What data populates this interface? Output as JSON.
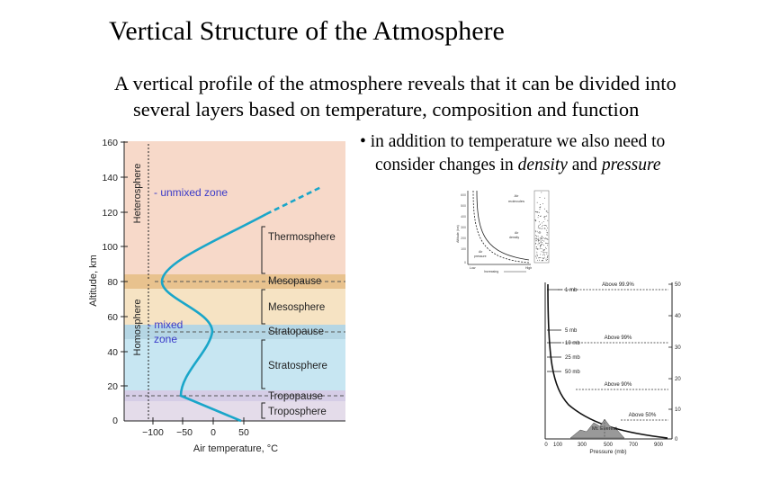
{
  "slide": {
    "title": "Vertical Structure of the Atmosphere",
    "intro_line1": "A vertical profile of the atmosphere reveals that it can be divided into",
    "intro_line2": "several layers based on temperature, composition and function",
    "bullet_marker": "•",
    "bullet_line1": "in addition to temperature we also need to",
    "bullet_line2_a": "consider changes in ",
    "bullet_line2_density": "density",
    "bullet_line2_b": " and ",
    "bullet_line2_pressure": "pressure"
  },
  "profile_diagram": {
    "ylabel": "Altitude, km",
    "xlabel": "Air temperature, °C",
    "y_ticks": [
      "160",
      "140",
      "120",
      "100",
      "80",
      "60",
      "40",
      "20",
      "0"
    ],
    "x_ticks": [
      "−100",
      "−50",
      "0",
      "50"
    ],
    "heterosphere": "Heterosphere",
    "homosphere": "Homosphere",
    "unmixed_zone": "- unmixed zone",
    "mixed_zone_line1": "- mixed",
    "mixed_zone_line2": "zone",
    "layers": {
      "thermosphere": "Thermosphere",
      "mesopause": "Mesopause",
      "mesosphere": "Mesosphere",
      "stratopause": "Stratopause",
      "stratosphere": "Stratosphere",
      "tropopause": "Tropopause",
      "troposphere": "Troposphere"
    },
    "colors": {
      "thermosphere": "#f7d9c9",
      "mesopause": "#e8c28e",
      "mesosphere": "#f6e3c3",
      "stratopause": "#b5d6e4",
      "stratosphere": "#c7e6f2",
      "tropopause": "#d5cde6",
      "troposphere": "#e4dcea",
      "curve": "#1aa6c9",
      "zone_text": "#3a3ac8"
    }
  },
  "density_thumb": {
    "air_molecules_line1": "Air",
    "air_molecules_line2": "molecules",
    "air_density_line1": "Air",
    "air_density_line2": "density",
    "air_pressure_line1": "Air",
    "air_pressure_line2": "pressure",
    "low": "Low",
    "high": "High",
    "increasing": "Increasing",
    "altitude": "Altitude (km)",
    "y_ticks": [
      "600",
      "500",
      "400",
      "300",
      "200",
      "100",
      "0"
    ]
  },
  "pressure_diagram": {
    "xlabel": "Pressure (mb)",
    "x_ticks": [
      "0",
      "100",
      "300",
      "500",
      "700",
      "900"
    ],
    "y_ticks": [
      "50",
      "40",
      "30",
      "20",
      "10",
      "0"
    ],
    "mb_labels": [
      "1 mb",
      "5 mb",
      "10 mb",
      "25 mb",
      "50 mb"
    ],
    "above": [
      "Above 99.9%",
      "Above 99%",
      "Above 90%",
      "Above 50%"
    ],
    "everest": "Mt. Everest"
  }
}
